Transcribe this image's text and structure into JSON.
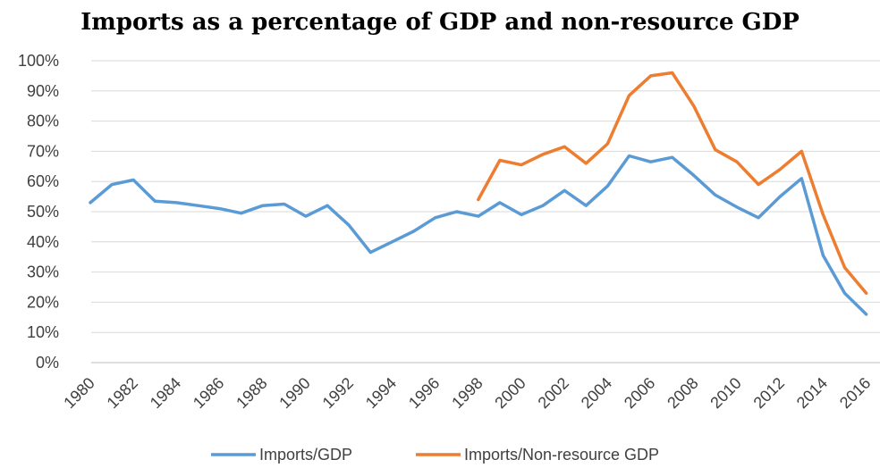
{
  "chart_data": {
    "type": "line",
    "title": "Imports as a percentage of GDP and non-resource GDP",
    "xlabel": "",
    "ylabel": "",
    "x": [
      1980,
      1981,
      1982,
      1983,
      1984,
      1985,
      1986,
      1987,
      1988,
      1989,
      1990,
      1991,
      1992,
      1993,
      1994,
      1995,
      1996,
      1997,
      1998,
      1999,
      2000,
      2001,
      2002,
      2003,
      2004,
      2005,
      2006,
      2007,
      2008,
      2009,
      2010,
      2011,
      2012,
      2013,
      2014,
      2015,
      2016
    ],
    "x_tick_labels": [
      "1980",
      "1982",
      "1984",
      "1986",
      "1988",
      "1990",
      "1992",
      "1994",
      "1996",
      "1998",
      "2000",
      "2002",
      "2004",
      "2006",
      "2008",
      "2010",
      "2012",
      "2014",
      "2016"
    ],
    "y_tick_labels": [
      "0%",
      "10%",
      "20%",
      "30%",
      "40%",
      "50%",
      "60%",
      "70%",
      "80%",
      "90%",
      "100%"
    ],
    "ylim": [
      0,
      100
    ],
    "y_unit": "%",
    "grid": "horizontal",
    "legend_position": "bottom",
    "series": [
      {
        "name": "Imports/GDP",
        "color": "#5b9bd5",
        "x": [
          1980,
          1981,
          1982,
          1983,
          1984,
          1985,
          1986,
          1987,
          1988,
          1989,
          1990,
          1991,
          1992,
          1993,
          1994,
          1995,
          1996,
          1997,
          1998,
          1999,
          2000,
          2001,
          2002,
          2003,
          2004,
          2005,
          2006,
          2007,
          2008,
          2009,
          2010,
          2011,
          2012,
          2013,
          2014,
          2015,
          2016
        ],
        "values": [
          53,
          59,
          60.5,
          53.5,
          53,
          52,
          51,
          49.5,
          52,
          52.5,
          48.5,
          52,
          45.5,
          36.5,
          40,
          43.5,
          48,
          50,
          48.5,
          53,
          49,
          52,
          57,
          52,
          58.5,
          68.5,
          66.5,
          68,
          62,
          55.5,
          51.5,
          48,
          55,
          61,
          35.5,
          23,
          16
        ]
      },
      {
        "name": "Imports/Non-resource GDP",
        "color": "#ed7d31",
        "x": [
          1998,
          1999,
          2000,
          2001,
          2002,
          2003,
          2004,
          2005,
          2006,
          2007,
          2008,
          2009,
          2010,
          2011,
          2012,
          2013,
          2014,
          2015,
          2016
        ],
        "values": [
          54,
          67,
          65.5,
          69,
          71.5,
          66,
          72.5,
          88.5,
          95,
          96,
          85,
          70.5,
          66.5,
          59,
          64,
          70,
          49,
          31.5,
          23
        ]
      }
    ]
  }
}
